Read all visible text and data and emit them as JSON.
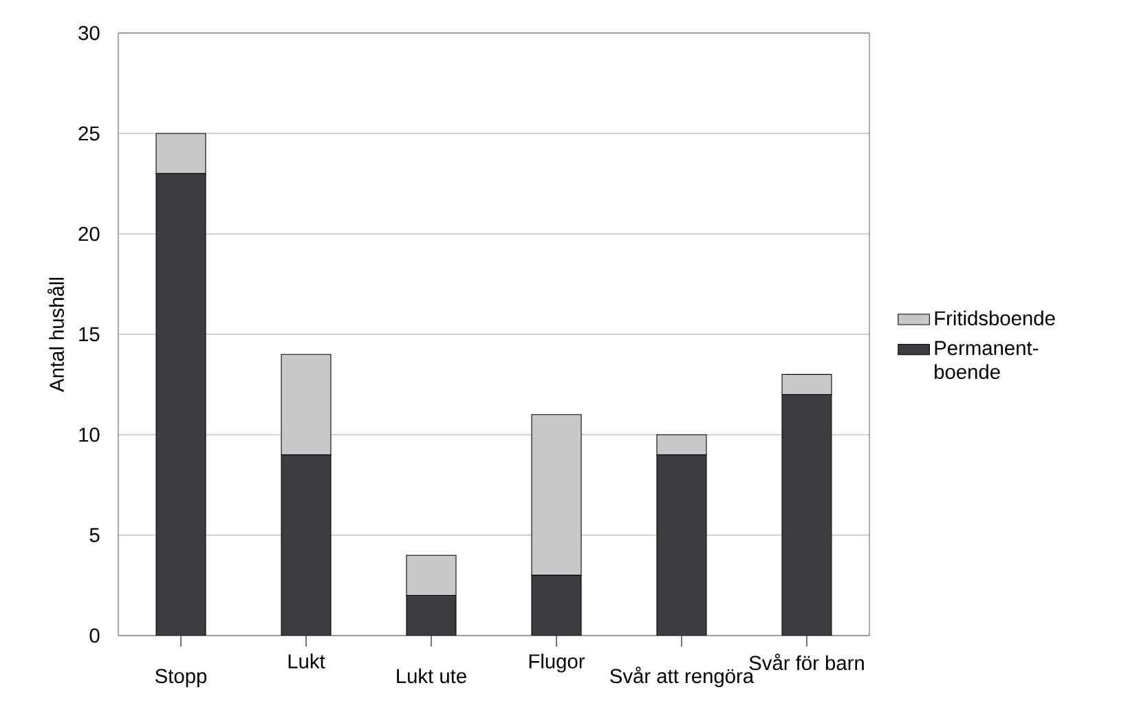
{
  "chart_data": {
    "type": "bar",
    "stacked": true,
    "ylabel": "Antal hushåll",
    "categories": [
      "Stopp",
      "Lukt",
      "Lukt ute",
      "Flugor",
      "Svår att rengöra",
      "Svår för barn"
    ],
    "series": [
      {
        "name": "Permanent-boende",
        "color": "#3c3c41",
        "values": [
          23,
          9,
          2,
          3,
          9,
          12
        ]
      },
      {
        "name": "Fritidsboende",
        "color": "#c8c8c8",
        "values": [
          2,
          5,
          2,
          8,
          1,
          1
        ]
      }
    ],
    "ylim": [
      0,
      30
    ],
    "yticks": [
      0,
      5,
      10,
      15,
      20,
      25,
      30
    ],
    "grid": "y",
    "legend": "right"
  }
}
